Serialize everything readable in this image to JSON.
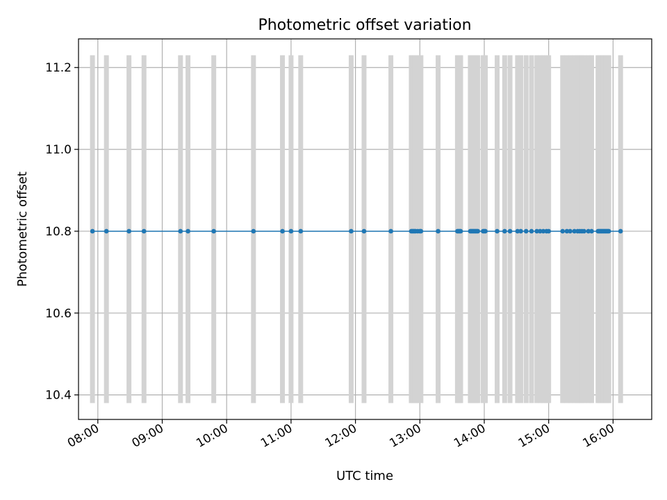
{
  "chart_data": {
    "type": "scatter",
    "title": "Photometric offset variation",
    "xlabel": "UTC time",
    "ylabel": "Photometric offset",
    "xlim": [
      "07:42",
      "16:36"
    ],
    "ylim": [
      10.34,
      11.27
    ],
    "x_ticks": [
      "08:00",
      "09:00",
      "10:00",
      "11:00",
      "12:00",
      "13:00",
      "14:00",
      "15:00",
      "16:00"
    ],
    "y_ticks": [
      "10.4",
      "10.6",
      "10.8",
      "11.0",
      "11.2"
    ],
    "grid": true,
    "colors": {
      "points": "#1f77b4",
      "bars": "#d3d3d3"
    },
    "series": [
      {
        "x": [
          "07:55",
          "08:08",
          "08:29",
          "08:43",
          "09:17",
          "09:24",
          "09:48",
          "10:25",
          "10:52",
          "11:00",
          "11:09",
          "11:56",
          "12:08",
          "12:33",
          "12:52",
          "12:53",
          "12:54",
          "12:55",
          "12:56",
          "12:58",
          "13:00",
          "13:01",
          "13:17",
          "13:35",
          "13:36",
          "13:37",
          "13:38",
          "13:47",
          "13:48",
          "13:49",
          "13:50",
          "13:51",
          "13:52",
          "13:53",
          "13:54",
          "13:59",
          "14:00",
          "14:01",
          "14:12",
          "14:19",
          "14:24",
          "14:31",
          "14:34",
          "14:39",
          "14:44",
          "14:49",
          "14:52",
          "14:55",
          "14:58",
          "15:00",
          "15:13",
          "15:17",
          "15:20",
          "15:24",
          "15:27",
          "15:29",
          "15:31",
          "15:33",
          "15:37",
          "15:40",
          "15:46",
          "15:47",
          "15:48",
          "15:49",
          "15:50",
          "15:51",
          "15:52",
          "15:53",
          "15:54",
          "15:55",
          "15:56",
          "16:07"
        ],
        "y": [
          10.8,
          10.8,
          10.8,
          10.8,
          10.8,
          10.8,
          10.8,
          10.8,
          10.8,
          10.8,
          10.8,
          10.8,
          10.8,
          10.8,
          10.8,
          10.8,
          10.8,
          10.8,
          10.8,
          10.8,
          10.8,
          10.8,
          10.8,
          10.8,
          10.8,
          10.8,
          10.8,
          10.8,
          10.8,
          10.8,
          10.8,
          10.8,
          10.8,
          10.8,
          10.8,
          10.8,
          10.8,
          10.8,
          10.8,
          10.8,
          10.8,
          10.8,
          10.8,
          10.8,
          10.8,
          10.8,
          10.8,
          10.8,
          10.8,
          10.8,
          10.8,
          10.8,
          10.8,
          10.8,
          10.8,
          10.8,
          10.8,
          10.8,
          10.8,
          10.8,
          10.8,
          10.8,
          10.8,
          10.8,
          10.8,
          10.8,
          10.8,
          10.8,
          10.8,
          10.8,
          10.8,
          10.8
        ]
      }
    ]
  }
}
